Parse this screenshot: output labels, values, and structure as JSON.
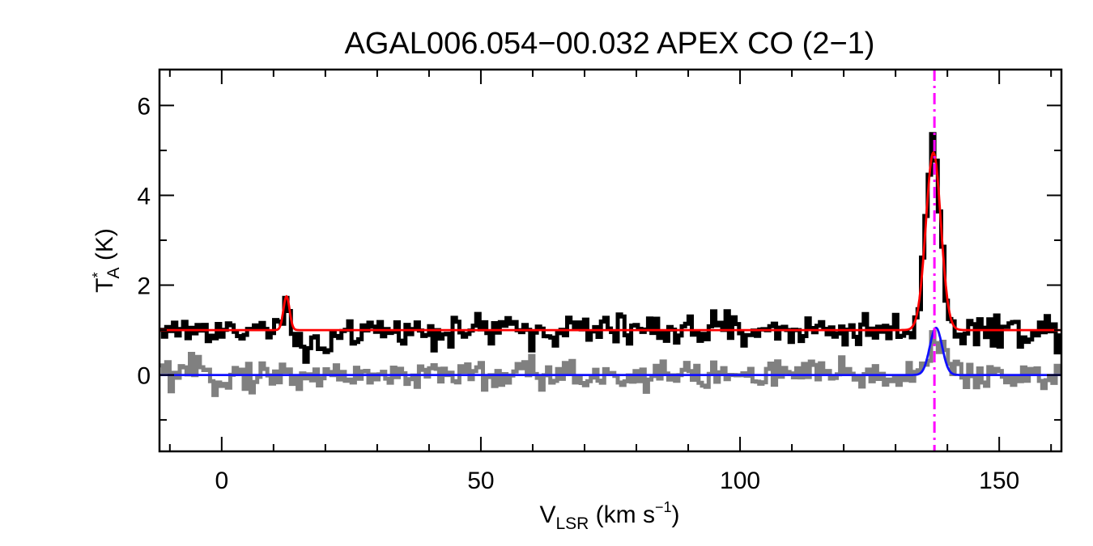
{
  "chart_data": {
    "type": "line",
    "title": "AGAL006.054−00.032  APEX CO (2−1)",
    "xlabel": {
      "main": "V",
      "sub": "LSR",
      "rest": " (km s",
      "sup": "−1",
      "tail": ")"
    },
    "ylabel": {
      "main": "T",
      "sup": "*",
      "sub": "A",
      "rest": " (K)"
    },
    "xlim": [
      -12,
      162
    ],
    "ylim": [
      -1.7,
      6.8
    ],
    "x_ticks": [
      0,
      50,
      100,
      150
    ],
    "x_tick_labels": [
      "0",
      "50",
      "100",
      "150"
    ],
    "x_minor_step": 10,
    "y_ticks": [
      0,
      2,
      4,
      6
    ],
    "y_tick_labels": [
      "0",
      "2",
      "4",
      "6"
    ],
    "y_minor_step": 1,
    "grid": false,
    "channel_width_kms": 0.65,
    "series": [
      {
        "role": "observed spectrum",
        "style": "step",
        "color": "#000000",
        "baseline": 1.0,
        "noise_sigma": 0.18,
        "components": [
          {
            "center": 12.5,
            "amplitude": 0.75,
            "fwhm": 1.4
          },
          {
            "center": 15.0,
            "amplitude": -0.55,
            "fwhm": 3.0
          },
          {
            "center": 19.5,
            "amplitude": -0.65,
            "fwhm": 3.0
          },
          {
            "center": 137.2,
            "amplitude": 4.3,
            "fwhm": 3.2
          }
        ]
      },
      {
        "role": "fit",
        "style": "line",
        "color": "#ff0000",
        "baseline": 1.0,
        "components": [
          {
            "center": 12.5,
            "amplitude": 0.75,
            "fwhm": 1.4
          },
          {
            "center": 137.3,
            "amplitude": 3.95,
            "fwhm": 3.4
          }
        ]
      },
      {
        "role": "residual spectrum",
        "style": "step",
        "color": "#808080",
        "baseline": 0.0,
        "noise_sigma": 0.18,
        "components": [
          {
            "center": 137.8,
            "amplitude": 0.85,
            "fwhm": 3.0
          }
        ]
      },
      {
        "role": "residual fit",
        "style": "line",
        "color": "#1010ff",
        "baseline": 0.0,
        "components": [
          {
            "center": 137.8,
            "amplitude": 1.05,
            "fwhm": 2.8
          }
        ]
      }
    ],
    "vlines": [
      {
        "x": 137.5,
        "color": "#ff00ff",
        "style": "dash-dot"
      }
    ]
  }
}
